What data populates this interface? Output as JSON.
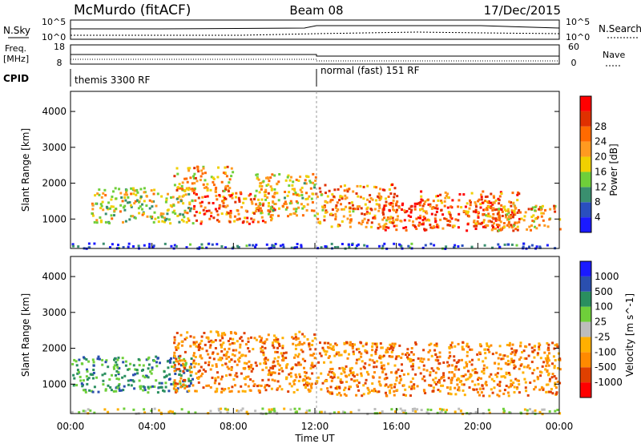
{
  "header": {
    "station": "McMurdo (fitACF)",
    "beam": "Beam 08",
    "date": "17/Dec/2015"
  },
  "noise_panel": {
    "left_label": "N.Sky",
    "right_label": "N.Search",
    "left_ticks": [
      "10^5",
      "10^0"
    ],
    "right_ticks": [
      "10^5",
      "10^0"
    ]
  },
  "freq_panel": {
    "left_label_line1": "Freq.",
    "left_label_line2": "[MHz]",
    "right_label": "Nave",
    "left_ticks": [
      "18",
      "8"
    ],
    "right_ticks": [
      "60",
      "0"
    ]
  },
  "cpid_panel": {
    "label": "CPID",
    "modes": [
      {
        "name": "themis 3300 RF",
        "start_hour": 0
      },
      {
        "name": "normal (fast) 151 RF",
        "start_hour": 12
      }
    ]
  },
  "colors": {
    "power": [
      "#1a1aff",
      "#2a4fbf",
      "#3a8f6f",
      "#6fcf3a",
      "#f0d000",
      "#ff9a20",
      "#ff6a00",
      "#e03000",
      "#ff0000"
    ],
    "velocity": [
      "#ff0000",
      "#e04000",
      "#ff8a00",
      "#ffb000",
      "#bdbdbd",
      "#6fcf3a",
      "#2a8f5f",
      "#2a4faf",
      "#1a1aff"
    ],
    "grid": "#999999"
  },
  "chart_data": [
    {
      "type": "heatmap",
      "title": "",
      "xlabel": "",
      "ylabel": "Slant Range [km]",
      "xlim": [
        0,
        24
      ],
      "ylim": [
        180,
        4560
      ],
      "yticks": [
        "1000",
        "2000",
        "3000",
        "4000"
      ],
      "yvalues": [
        1000,
        2000,
        3000,
        4000
      ],
      "colorbar_label": "Power [dB]",
      "colorbar_ticks": [
        "4",
        "8",
        "12",
        "16",
        "20",
        "24",
        "28"
      ],
      "colorbar_range": [
        0,
        30
      ],
      "features": [
        {
          "hours": [
            0,
            24
          ],
          "range_km": [
            200,
            350
          ],
          "level": 4
        },
        {
          "hours": [
            1,
            6
          ],
          "range_km": [
            900,
            1900
          ],
          "level": 14
        },
        {
          "hours": [
            5,
            8
          ],
          "range_km": [
            1800,
            2500
          ],
          "level": 18
        },
        {
          "hours": [
            6,
            10
          ],
          "range_km": [
            900,
            1800
          ],
          "level": 22
        },
        {
          "hours": [
            9,
            12
          ],
          "range_km": [
            1100,
            2300
          ],
          "level": 16
        },
        {
          "hours": [
            12,
            16
          ],
          "range_km": [
            800,
            2000
          ],
          "level": 20
        },
        {
          "hours": [
            15,
            18
          ],
          "range_km": [
            700,
            1500
          ],
          "level": 24
        },
        {
          "hours": [
            17,
            22
          ],
          "range_km": [
            700,
            1800
          ],
          "level": 22
        },
        {
          "hours": [
            20,
            24
          ],
          "range_km": [
            700,
            1400
          ],
          "level": 18
        }
      ]
    },
    {
      "type": "heatmap",
      "title": "",
      "xlabel": "Time UT",
      "ylabel": "Slant Range [km]",
      "xlim": [
        0,
        24
      ],
      "ylim": [
        180,
        4560
      ],
      "xticks": [
        "00:00",
        "04:00",
        "08:00",
        "12:00",
        "16:00",
        "20:00",
        "00:00"
      ],
      "xvalues": [
        0,
        4,
        8,
        12,
        16,
        20,
        24
      ],
      "yticks": [
        "1000",
        "2000",
        "3000",
        "4000"
      ],
      "yvalues": [
        1000,
        2000,
        3000,
        4000
      ],
      "colorbar_label": "Velocity [m s^-1]",
      "colorbar_ticks": [
        "-1000",
        "-500",
        "-100",
        "-25",
        "25",
        "100",
        "500",
        "1000"
      ],
      "features": [
        {
          "hours": [
            0,
            6
          ],
          "range_km": [
            800,
            1800
          ],
          "velocity_class": "positive"
        },
        {
          "hours": [
            5,
            12
          ],
          "range_km": [
            800,
            2500
          ],
          "velocity_class": "negative"
        },
        {
          "hours": [
            12,
            24
          ],
          "range_km": [
            700,
            2200
          ],
          "velocity_class": "negative"
        },
        {
          "hours": [
            0,
            24
          ],
          "range_km": [
            200,
            350
          ],
          "velocity_class": "near-zero"
        }
      ]
    }
  ]
}
